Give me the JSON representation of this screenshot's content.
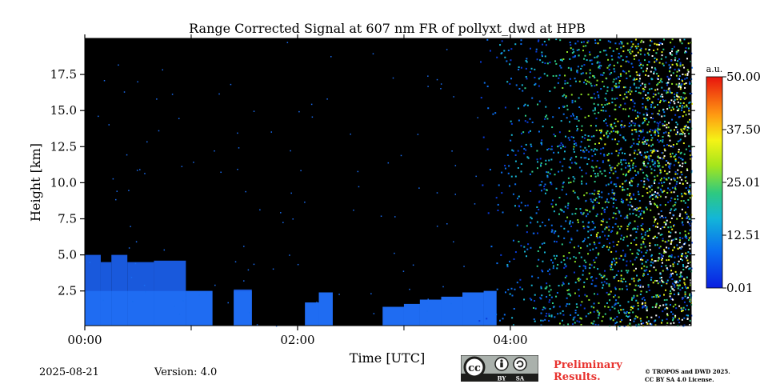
{
  "chart_data": {
    "type": "heatmap",
    "title": "Range Corrected Signal at 607 nm FR of pollyxt_dwd at HPB",
    "xlabel": "Time [UTC]",
    "ylabel": "Height [km]",
    "x_range_hours": [
      0,
      5.7
    ],
    "x_ticks": [
      {
        "hour": 0,
        "label": "00:00"
      },
      {
        "hour": 2,
        "label": "02:00"
      },
      {
        "hour": 4,
        "label": "04:00"
      }
    ],
    "x_minor_ticks": [
      1,
      3,
      5
    ],
    "ylim": [
      0.1,
      20
    ],
    "y_ticks": [
      {
        "value": 2.5,
        "label": "2.5"
      },
      {
        "value": 5.0,
        "label": "5.0"
      },
      {
        "value": 7.5,
        "label": "7.5"
      },
      {
        "value": 10.0,
        "label": "10.0"
      },
      {
        "value": 12.5,
        "label": "12.5"
      },
      {
        "value": 15.0,
        "label": "15.0"
      },
      {
        "value": 17.5,
        "label": "17.5"
      }
    ],
    "colorbar": {
      "unit": "a.u.",
      "min": 0.01,
      "max": 50.0,
      "ticks": [
        {
          "value": 50.0,
          "label": "50.00"
        },
        {
          "value": 37.5,
          "label": "37.50"
        },
        {
          "value": 25.01,
          "label": "25.01"
        },
        {
          "value": 12.51,
          "label": "12.51"
        },
        {
          "value": 0.01,
          "label": "0.01"
        }
      ]
    },
    "cloud_segments": [
      {
        "t0": 0.0,
        "t1": 0.15,
        "top_km": 5.0
      },
      {
        "t0": 0.15,
        "t1": 0.25,
        "top_km": 4.5
      },
      {
        "t0": 0.25,
        "t1": 0.4,
        "top_km": 5.0
      },
      {
        "t0": 0.4,
        "t1": 0.65,
        "top_km": 4.5
      },
      {
        "t0": 0.65,
        "t1": 0.95,
        "top_km": 4.6
      },
      {
        "t0": 0.95,
        "t1": 1.2,
        "top_km": 2.5
      },
      {
        "t0": 1.4,
        "t1": 1.57,
        "top_km": 2.6
      },
      {
        "t0": 2.07,
        "t1": 2.2,
        "top_km": 1.7
      },
      {
        "t0": 2.2,
        "t1": 2.33,
        "top_km": 2.4
      },
      {
        "t0": 2.8,
        "t1": 3.0,
        "top_km": 1.4
      },
      {
        "t0": 3.0,
        "t1": 3.15,
        "top_km": 1.6
      },
      {
        "t0": 3.15,
        "t1": 3.35,
        "top_km": 1.9
      },
      {
        "t0": 3.35,
        "t1": 3.55,
        "top_km": 2.1
      },
      {
        "t0": 3.55,
        "t1": 3.75,
        "top_km": 2.4
      },
      {
        "t0": 3.75,
        "t1": 3.87,
        "top_km": 2.5
      }
    ],
    "noise_onset_hour": 3.7,
    "background_color": "#000000"
  },
  "footer": {
    "date": "2025-08-21",
    "version": "Version: 4.0",
    "license_badge": [
      "BY",
      "SA"
    ],
    "preliminary": [
      "Preliminary",
      "Results."
    ],
    "copyright": [
      "© TROPOS and DWD 2025.",
      "CC BY SA 4.0 License."
    ]
  },
  "colors": {
    "preliminary": "#e8332f",
    "badge_bg": "#aab1ac",
    "badge_dark": "#1d1d1b"
  }
}
